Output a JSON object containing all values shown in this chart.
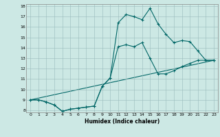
{
  "title": "",
  "xlabel": "Humidex (Indice chaleur)",
  "background_color": "#cce8e4",
  "line_color": "#006666",
  "xlim": [
    -0.5,
    23.5
  ],
  "ylim": [
    7.8,
    18.2
  ],
  "xticks": [
    0,
    1,
    2,
    3,
    4,
    5,
    6,
    7,
    8,
    9,
    10,
    11,
    12,
    13,
    14,
    15,
    16,
    17,
    18,
    19,
    20,
    21,
    22,
    23
  ],
  "yticks": [
    8,
    9,
    10,
    11,
    12,
    13,
    14,
    15,
    16,
    17,
    18
  ],
  "line1_x": [
    0,
    1,
    2,
    3,
    4,
    5,
    6,
    7,
    8,
    9,
    10,
    11,
    12,
    13,
    14,
    15,
    16,
    17,
    18,
    19,
    20,
    21,
    22,
    23
  ],
  "line1_y": [
    9.0,
    9.0,
    8.8,
    8.5,
    7.9,
    8.1,
    8.2,
    8.3,
    8.4,
    10.3,
    11.1,
    16.4,
    17.2,
    17.0,
    16.7,
    17.8,
    16.3,
    15.3,
    14.5,
    14.7,
    14.6,
    13.7,
    12.8,
    12.8
  ],
  "line2_x": [
    0,
    1,
    2,
    3,
    4,
    5,
    6,
    7,
    8,
    9,
    10,
    11,
    12,
    13,
    14,
    15,
    16,
    17,
    18,
    19,
    20,
    21,
    22,
    23
  ],
  "line2_y": [
    9.0,
    9.0,
    8.8,
    8.5,
    7.9,
    8.1,
    8.2,
    8.3,
    8.4,
    10.3,
    11.1,
    14.1,
    14.3,
    14.1,
    14.5,
    13.0,
    11.5,
    11.5,
    11.8,
    12.2,
    12.5,
    12.8,
    12.8,
    12.8
  ],
  "line3_x": [
    0,
    23
  ],
  "line3_y": [
    9.0,
    12.8
  ],
  "grid_color": "#99bbbb",
  "marker": "+"
}
